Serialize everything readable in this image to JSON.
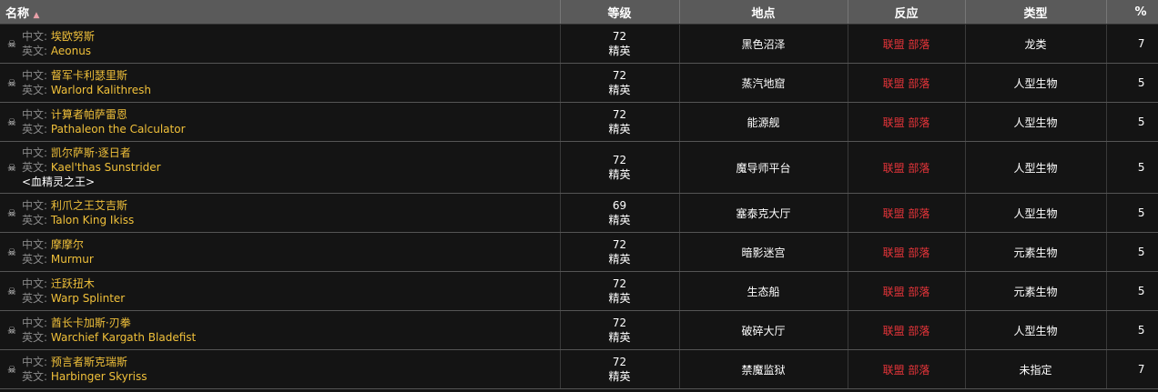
{
  "headers": {
    "name": "名称",
    "level": "等级",
    "location": "地点",
    "reaction": "反应",
    "type": "类型",
    "percent": "%"
  },
  "labels": {
    "cn": "中文:",
    "en": "英文:"
  },
  "rows": [
    {
      "cn": "埃欧努斯",
      "en": "Aeonus",
      "title": null,
      "level": "72",
      "rank": "精英",
      "location": "黑色沼泽",
      "alliance": "联盟",
      "horde": "部落",
      "type": "龙类",
      "percent": "7"
    },
    {
      "cn": "督军卡利瑟里斯",
      "en": "Warlord Kalithresh",
      "title": null,
      "level": "72",
      "rank": "精英",
      "location": "蒸汽地窟",
      "alliance": "联盟",
      "horde": "部落",
      "type": "人型生物",
      "percent": "5"
    },
    {
      "cn": "计算者帕萨雷恩",
      "en": "Pathaleon the Calculator",
      "title": null,
      "level": "72",
      "rank": "精英",
      "location": "能源舰",
      "alliance": "联盟",
      "horde": "部落",
      "type": "人型生物",
      "percent": "5"
    },
    {
      "cn": "凯尔萨斯·逐日者",
      "en": "Kael'thas Sunstrider",
      "title": "<血精灵之王>",
      "level": "72",
      "rank": "精英",
      "location": "魔导师平台",
      "alliance": "联盟",
      "horde": "部落",
      "type": "人型生物",
      "percent": "5"
    },
    {
      "cn": "利爪之王艾吉斯",
      "en": "Talon King Ikiss",
      "title": null,
      "level": "69",
      "rank": "精英",
      "location": "塞泰克大厅",
      "alliance": "联盟",
      "horde": "部落",
      "type": "人型生物",
      "percent": "5"
    },
    {
      "cn": "摩摩尔",
      "en": "Murmur",
      "title": null,
      "level": "72",
      "rank": "精英",
      "location": "暗影迷宫",
      "alliance": "联盟",
      "horde": "部落",
      "type": "元素生物",
      "percent": "5"
    },
    {
      "cn": "迁跃扭木",
      "en": "Warp Splinter",
      "title": null,
      "level": "72",
      "rank": "精英",
      "location": "生态船",
      "alliance": "联盟",
      "horde": "部落",
      "type": "元素生物",
      "percent": "5"
    },
    {
      "cn": "酋长卡加斯·刃拳",
      "en": "Warchief Kargath Bladefist",
      "title": null,
      "level": "72",
      "rank": "精英",
      "location": "破碎大厅",
      "alliance": "联盟",
      "horde": "部落",
      "type": "人型生物",
      "percent": "5"
    },
    {
      "cn": "预言者斯克瑞斯",
      "en": "Harbinger Skyriss",
      "title": null,
      "level": "72",
      "rank": "精英",
      "location": "禁魔监狱",
      "alliance": "联盟",
      "horde": "部落",
      "type": "未指定",
      "percent": "7"
    }
  ]
}
